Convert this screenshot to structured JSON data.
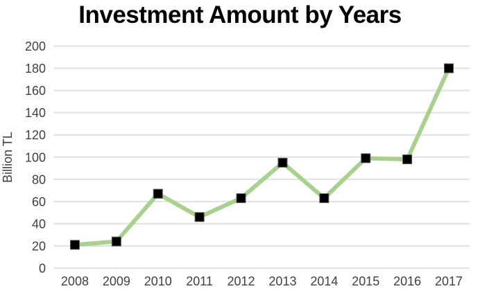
{
  "page": {
    "background_color": "#ffffff"
  },
  "chart_data": {
    "type": "line",
    "title": "Investment Amount by Years",
    "xlabel": "",
    "ylabel": "Billion TL",
    "categories": [
      "2008",
      "2009",
      "2010",
      "2011",
      "2012",
      "2013",
      "2014",
      "2015",
      "2016",
      "2017"
    ],
    "values": [
      21,
      24,
      67,
      46,
      63,
      95,
      63,
      99,
      98,
      180
    ],
    "ylim": [
      0,
      200
    ],
    "ytick_step": 20,
    "ytick_labels": [
      "0",
      "20",
      "40",
      "60",
      "80",
      "100",
      "120",
      "140",
      "160",
      "180",
      "200"
    ],
    "grid": "horizontal-only",
    "legend": "none",
    "marker": "square",
    "colors": {
      "line": "#a9d18e",
      "marker_fill": "#000000",
      "marker_stroke": "#595959",
      "gridline": "#e0e0e0",
      "tick_label": "#404040",
      "axis_label": "#404040",
      "title": "#000000"
    }
  }
}
